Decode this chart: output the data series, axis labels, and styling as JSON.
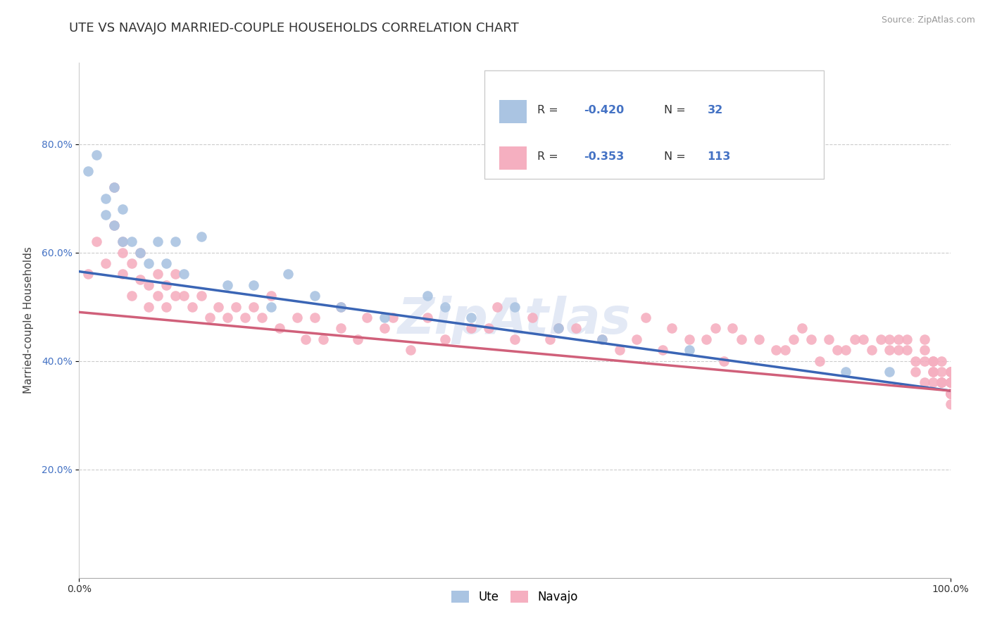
{
  "title": "UTE VS NAVAJO MARRIED-COUPLE HOUSEHOLDS CORRELATION CHART",
  "source_text": "Source: ZipAtlas.com",
  "ylabel": "Married-couple Households",
  "legend_ute_label": "Ute",
  "legend_navajo_label": "Navajo",
  "ute_r": "-0.420",
  "ute_n": "32",
  "navajo_r": "-0.353",
  "navajo_n": "113",
  "ute_color": "#aac4e2",
  "navajo_color": "#f5afc0",
  "ute_line_color": "#3a65b5",
  "navajo_line_color": "#d0607a",
  "r_color": "#4472c4",
  "n_color": "#4472c4",
  "grid_color": "#cccccc",
  "bg_color": "#ffffff",
  "watermark_text": "ZipAtlas",
  "title_fontsize": 13,
  "axis_label_fontsize": 11,
  "tick_fontsize": 10,
  "source_fontsize": 9,
  "xlim": [
    0.0,
    1.0
  ],
  "ylim": [
    0.0,
    0.95
  ],
  "xticks": [
    0.0,
    1.0
  ],
  "xticklabels": [
    "0.0%",
    "100.0%"
  ],
  "yticks": [
    0.2,
    0.4,
    0.6,
    0.8
  ],
  "yticklabels": [
    "20.0%",
    "40.0%",
    "60.0%",
    "80.0%"
  ],
  "ute_x": [
    0.01,
    0.02,
    0.03,
    0.03,
    0.04,
    0.04,
    0.05,
    0.05,
    0.06,
    0.07,
    0.08,
    0.09,
    0.1,
    0.11,
    0.12,
    0.14,
    0.17,
    0.2,
    0.22,
    0.24,
    0.27,
    0.3,
    0.35,
    0.4,
    0.42,
    0.45,
    0.5,
    0.55,
    0.6,
    0.7,
    0.88,
    0.93
  ],
  "ute_y": [
    0.75,
    0.78,
    0.67,
    0.7,
    0.65,
    0.72,
    0.62,
    0.68,
    0.62,
    0.6,
    0.58,
    0.62,
    0.58,
    0.62,
    0.56,
    0.63,
    0.54,
    0.54,
    0.5,
    0.56,
    0.52,
    0.5,
    0.48,
    0.52,
    0.5,
    0.48,
    0.5,
    0.46,
    0.44,
    0.42,
    0.38,
    0.38
  ],
  "navajo_x": [
    0.01,
    0.02,
    0.03,
    0.04,
    0.04,
    0.05,
    0.05,
    0.05,
    0.06,
    0.06,
    0.07,
    0.07,
    0.08,
    0.08,
    0.09,
    0.09,
    0.1,
    0.1,
    0.11,
    0.11,
    0.12,
    0.13,
    0.14,
    0.15,
    0.16,
    0.17,
    0.18,
    0.19,
    0.2,
    0.21,
    0.22,
    0.23,
    0.25,
    0.26,
    0.27,
    0.28,
    0.3,
    0.3,
    0.32,
    0.33,
    0.35,
    0.36,
    0.38,
    0.4,
    0.42,
    0.45,
    0.47,
    0.48,
    0.5,
    0.52,
    0.54,
    0.55,
    0.57,
    0.6,
    0.62,
    0.64,
    0.65,
    0.67,
    0.68,
    0.7,
    0.72,
    0.73,
    0.74,
    0.75,
    0.76,
    0.78,
    0.8,
    0.81,
    0.82,
    0.83,
    0.84,
    0.85,
    0.86,
    0.87,
    0.88,
    0.89,
    0.9,
    0.91,
    0.92,
    0.93,
    0.93,
    0.94,
    0.94,
    0.95,
    0.95,
    0.96,
    0.96,
    0.97,
    0.97,
    0.97,
    0.97,
    0.98,
    0.98,
    0.98,
    0.98,
    0.98,
    0.99,
    0.99,
    0.99,
    0.99,
    0.99,
    1.0,
    1.0,
    1.0,
    1.0,
    1.0,
    1.0,
    1.0,
    1.0,
    1.0,
    1.0,
    1.0,
    1.0
  ],
  "navajo_y": [
    0.56,
    0.62,
    0.58,
    0.65,
    0.72,
    0.56,
    0.6,
    0.62,
    0.52,
    0.58,
    0.55,
    0.6,
    0.5,
    0.54,
    0.52,
    0.56,
    0.5,
    0.54,
    0.52,
    0.56,
    0.52,
    0.5,
    0.52,
    0.48,
    0.5,
    0.48,
    0.5,
    0.48,
    0.5,
    0.48,
    0.52,
    0.46,
    0.48,
    0.44,
    0.48,
    0.44,
    0.46,
    0.5,
    0.44,
    0.48,
    0.46,
    0.48,
    0.42,
    0.48,
    0.44,
    0.46,
    0.46,
    0.5,
    0.44,
    0.48,
    0.44,
    0.46,
    0.46,
    0.44,
    0.42,
    0.44,
    0.48,
    0.42,
    0.46,
    0.44,
    0.44,
    0.46,
    0.4,
    0.46,
    0.44,
    0.44,
    0.42,
    0.42,
    0.44,
    0.46,
    0.44,
    0.4,
    0.44,
    0.42,
    0.42,
    0.44,
    0.44,
    0.42,
    0.44,
    0.42,
    0.44,
    0.42,
    0.44,
    0.42,
    0.44,
    0.4,
    0.38,
    0.42,
    0.4,
    0.44,
    0.36,
    0.4,
    0.38,
    0.4,
    0.36,
    0.38,
    0.36,
    0.4,
    0.36,
    0.38,
    0.36,
    0.38,
    0.36,
    0.38,
    0.34,
    0.36,
    0.36,
    0.34,
    0.38,
    0.34,
    0.36,
    0.32,
    0.34
  ],
  "ute_line_x0": 0.0,
  "ute_line_y0": 0.565,
  "ute_line_x1": 1.0,
  "ute_line_y1": 0.345,
  "nav_line_x0": 0.0,
  "nav_line_y0": 0.49,
  "nav_line_x1": 1.0,
  "nav_line_y1": 0.345
}
